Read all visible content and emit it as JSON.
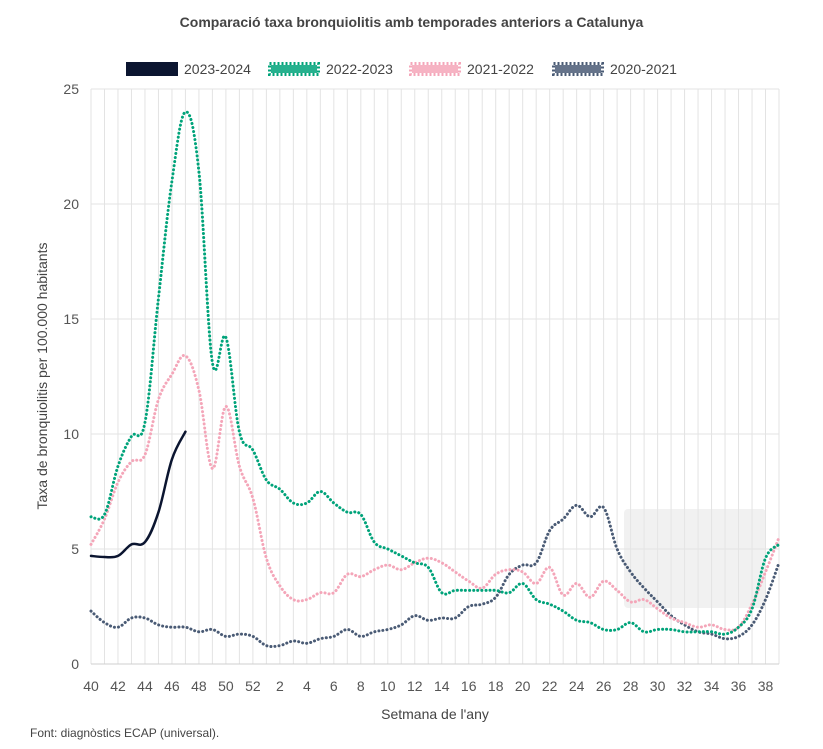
{
  "chart_data": {
    "type": "line",
    "title": "Comparació taxa bronquiolitis amb temporades anteriors a Catalunya",
    "xlabel": "Setmana de l'any",
    "ylabel": "Taxa de bronquiolitis per 100.000 habitants",
    "ylim": [
      0,
      25
    ],
    "yticks": [
      "0",
      "5",
      "10",
      "15",
      "20",
      "25"
    ],
    "x_week_order": [
      40,
      41,
      42,
      43,
      44,
      45,
      46,
      47,
      48,
      49,
      50,
      51,
      52,
      1,
      2,
      3,
      4,
      5,
      6,
      7,
      8,
      9,
      10,
      11,
      12,
      13,
      14,
      15,
      16,
      17,
      18,
      19,
      20,
      21,
      22,
      23,
      24,
      25,
      26,
      27,
      28,
      29,
      30,
      31,
      32,
      33,
      34,
      35,
      36,
      37,
      38,
      39
    ],
    "xticks": [
      "40",
      "42",
      "44",
      "46",
      "48",
      "50",
      "52",
      "2",
      "4",
      "6",
      "8",
      "10",
      "12",
      "14",
      "16",
      "18",
      "20",
      "22",
      "24",
      "26",
      "28",
      "30",
      "32",
      "34",
      "36",
      "38"
    ],
    "grid": true,
    "legend_position": "top",
    "series": [
      {
        "name": "2023-2024",
        "color": "#0b1530",
        "style": "solid",
        "values": [
          4.7,
          4.65,
          4.7,
          5.2,
          5.3,
          6.6,
          8.9,
          10.1
        ]
      },
      {
        "name": "2022-2023",
        "color": "#00a37a",
        "style": "dotted",
        "values": [
          6.4,
          6.5,
          8.6,
          9.9,
          10.5,
          15.9,
          21.0,
          24.0,
          21.4,
          13.1,
          14.2,
          10.1,
          9.3,
          8.0,
          7.6,
          7.0,
          7.0,
          7.5,
          7.0,
          6.6,
          6.5,
          5.3,
          5.0,
          4.7,
          4.4,
          4.2,
          3.1,
          3.2,
          3.2,
          3.2,
          3.2,
          3.1,
          3.5,
          2.8,
          2.6,
          2.3,
          1.9,
          1.8,
          1.5,
          1.5,
          1.8,
          1.4,
          1.5,
          1.5,
          1.4,
          1.4,
          1.4,
          1.3,
          1.6,
          2.4,
          4.6,
          5.2
        ]
      },
      {
        "name": "2021-2022",
        "color": "#f4a6b9",
        "style": "dotted",
        "values": [
          5.2,
          6.3,
          7.9,
          8.8,
          9.1,
          11.5,
          12.6,
          13.4,
          11.9,
          8.5,
          11.2,
          8.6,
          7.2,
          4.6,
          3.4,
          2.8,
          2.8,
          3.1,
          3.1,
          3.9,
          3.8,
          4.1,
          4.3,
          4.1,
          4.4,
          4.6,
          4.4,
          4.0,
          3.6,
          3.3,
          3.9,
          4.1,
          4.0,
          3.5,
          4.2,
          3.0,
          3.5,
          2.9,
          3.6,
          3.2,
          2.7,
          2.8,
          2.4,
          2.0,
          1.8,
          1.6,
          1.7,
          1.5,
          1.6,
          2.6,
          4.0,
          5.5
        ]
      },
      {
        "name": "2020-2021",
        "color": "#4a5b75",
        "style": "dotted",
        "values": [
          2.3,
          1.8,
          1.6,
          2.0,
          2.0,
          1.7,
          1.6,
          1.6,
          1.4,
          1.5,
          1.2,
          1.3,
          1.2,
          0.8,
          0.8,
          1.0,
          0.9,
          1.1,
          1.2,
          1.5,
          1.2,
          1.4,
          1.5,
          1.7,
          2.1,
          1.9,
          2.0,
          2.0,
          2.5,
          2.6,
          2.9,
          3.9,
          4.3,
          4.4,
          5.8,
          6.3,
          6.9,
          6.4,
          6.8,
          5.0,
          4.0,
          3.3,
          2.7,
          2.1,
          1.7,
          1.4,
          1.3,
          1.1,
          1.2,
          1.7,
          2.8,
          4.4
        ]
      }
    ]
  },
  "footer": {
    "source": "Font: diagnòstics ECAP (universal)."
  }
}
